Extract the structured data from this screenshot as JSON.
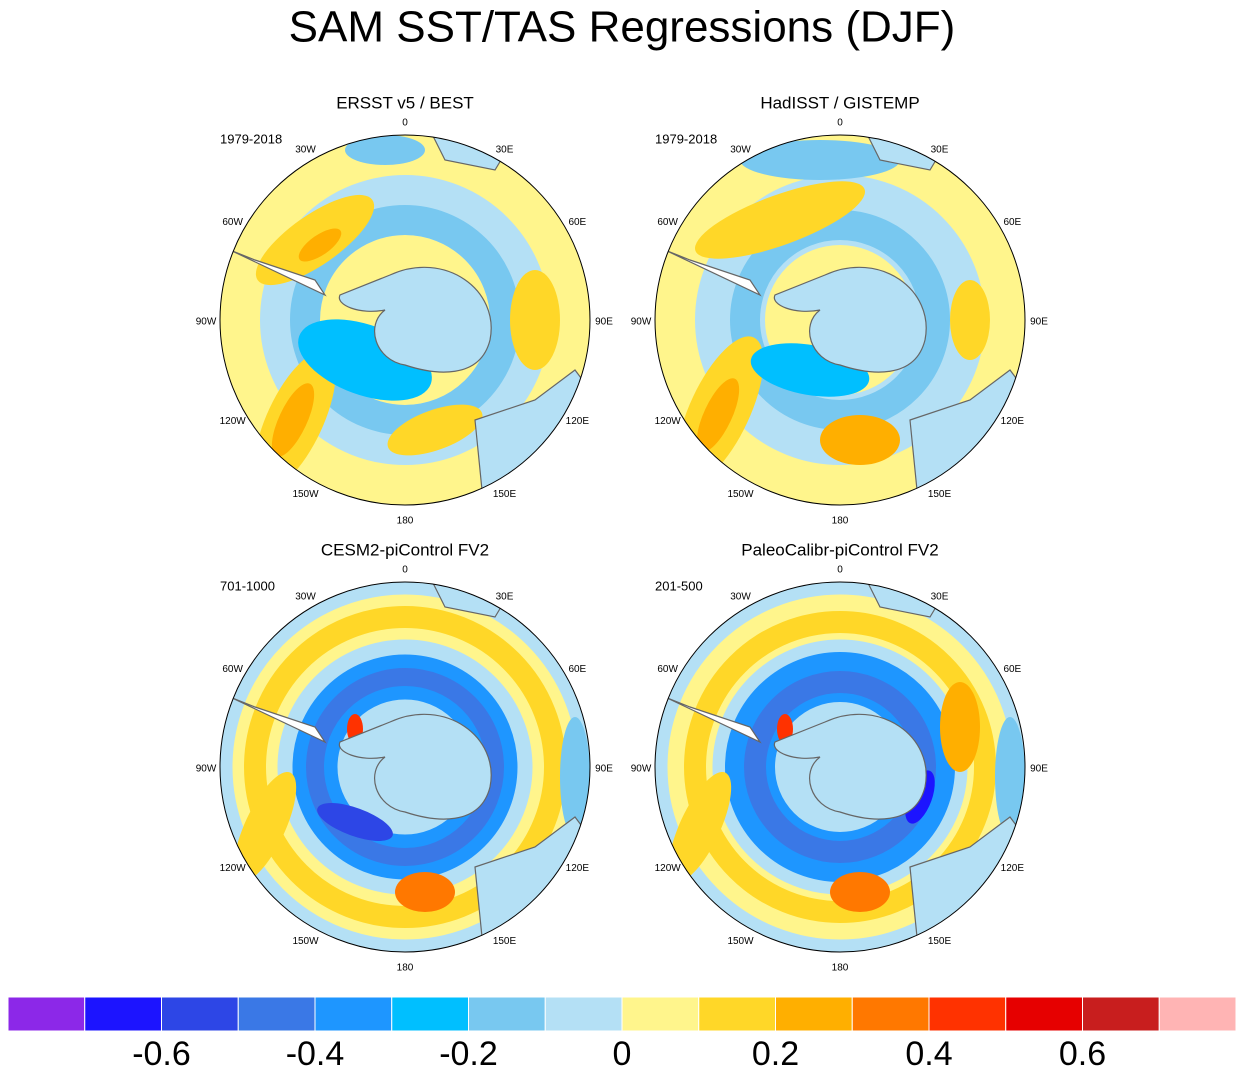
{
  "title": "SAM SST/TAS Regressions (DJF)",
  "lon_labels": [
    "0",
    "30E",
    "60E",
    "90E",
    "120E",
    "150E",
    "180",
    "150W",
    "120W",
    "90W",
    "60W",
    "30W"
  ],
  "panels": [
    {
      "title": "ERSST v5 / BEST",
      "period": "1979-2018"
    },
    {
      "title": "HadISST / GISTEMP",
      "period": "1979-2018"
    },
    {
      "title": "CESM2-piControl FV2",
      "period": "701-1000"
    },
    {
      "title": "PaleoCalibr-piControl FV2",
      "period": "201-500"
    }
  ],
  "colorbar": {
    "colors": [
      "#8c28e8",
      "#1c14ff",
      "#2d46e6",
      "#3a78e6",
      "#1e96ff",
      "#00bfff",
      "#78c8f0",
      "#b4e0f5",
      "#fff58c",
      "#ffd728",
      "#ffaf00",
      "#ff7800",
      "#ff3200",
      "#e60000",
      "#c81e1e",
      "#ffb4b4"
    ],
    "xlim": [
      -0.8,
      0.8
    ],
    "xticks": [
      -0.6,
      -0.4,
      -0.2,
      0,
      0.2,
      0.4,
      0.6
    ]
  }
}
